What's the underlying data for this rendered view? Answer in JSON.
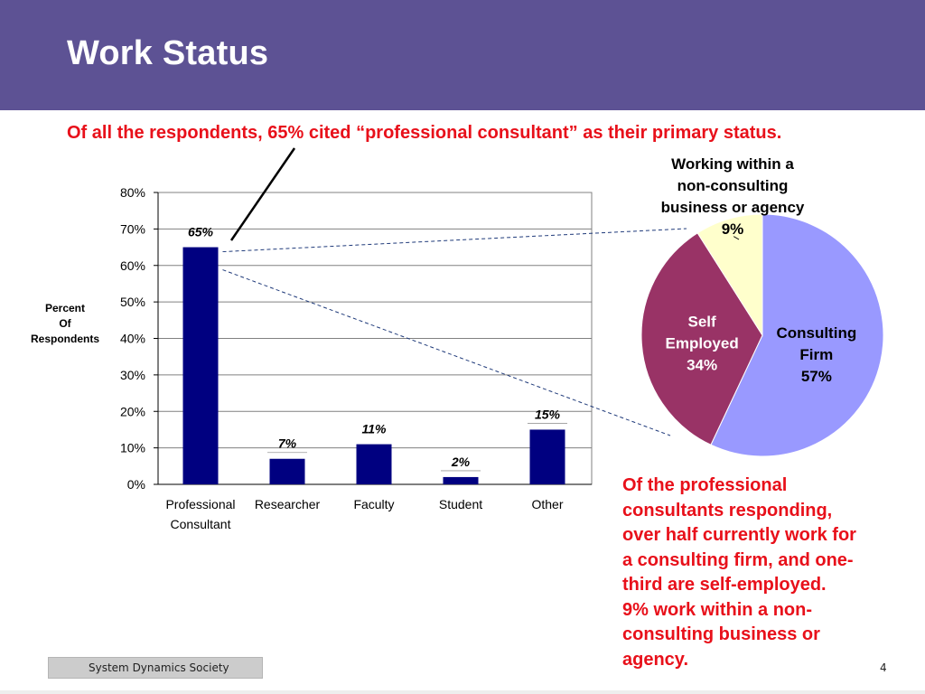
{
  "slide": {
    "title": "Work Status",
    "headline": "Of all the respondents, 65% cited “professional consultant” as their primary status.",
    "footer": "System Dynamics Society",
    "page_number": "4",
    "note_lines": [
      "Of the professional",
      "consultants responding,",
      "over half currently work for",
      "a consulting firm, and one-",
      "third are self-employed.",
      "9% work within a non-",
      "consulting business or",
      "agency."
    ]
  },
  "colors": {
    "header": "#5d5294",
    "accent_red": "#e8101a",
    "bar": "#000080",
    "pie_consulting": "#9999ff",
    "pie_self": "#993366",
    "pie_noncons": "#ffffcc"
  },
  "chart_data": [
    {
      "type": "bar",
      "categories": [
        [
          "Professional",
          "Consultant"
        ],
        [
          "Researcher"
        ],
        [
          "Faculty"
        ],
        [
          "Student"
        ],
        [
          "Other"
        ]
      ],
      "values": [
        65,
        7,
        11,
        2,
        15
      ],
      "data_labels": [
        "65%",
        "7%",
        "11%",
        "2%",
        "15%"
      ],
      "ylabel": [
        "Percent",
        "Of",
        "Respondents"
      ],
      "ylim": [
        0,
        80
      ],
      "yticks": [
        0,
        10,
        20,
        30,
        40,
        50,
        60,
        70,
        80
      ],
      "ytick_labels": [
        "0%",
        "10%",
        "20%",
        "30%",
        "40%",
        "50%",
        "60%",
        "70%",
        "80%"
      ],
      "grid": true
    },
    {
      "type": "pie",
      "slices": [
        {
          "label": [
            "Consulting",
            "Firm"
          ],
          "pct_label": "57%",
          "value": 57,
          "color": "#9999ff",
          "text_color": "#000000"
        },
        {
          "label": [
            "Self",
            "Employed"
          ],
          "pct_label": "34%",
          "value": 34,
          "color": "#993366",
          "text_color": "#ffffff"
        },
        {
          "label": [
            "Working within a",
            "non-consulting",
            "business or agency"
          ],
          "pct_label": "9%",
          "value": 9,
          "color": "#ffffcc",
          "text_color": "#000000"
        }
      ]
    }
  ]
}
